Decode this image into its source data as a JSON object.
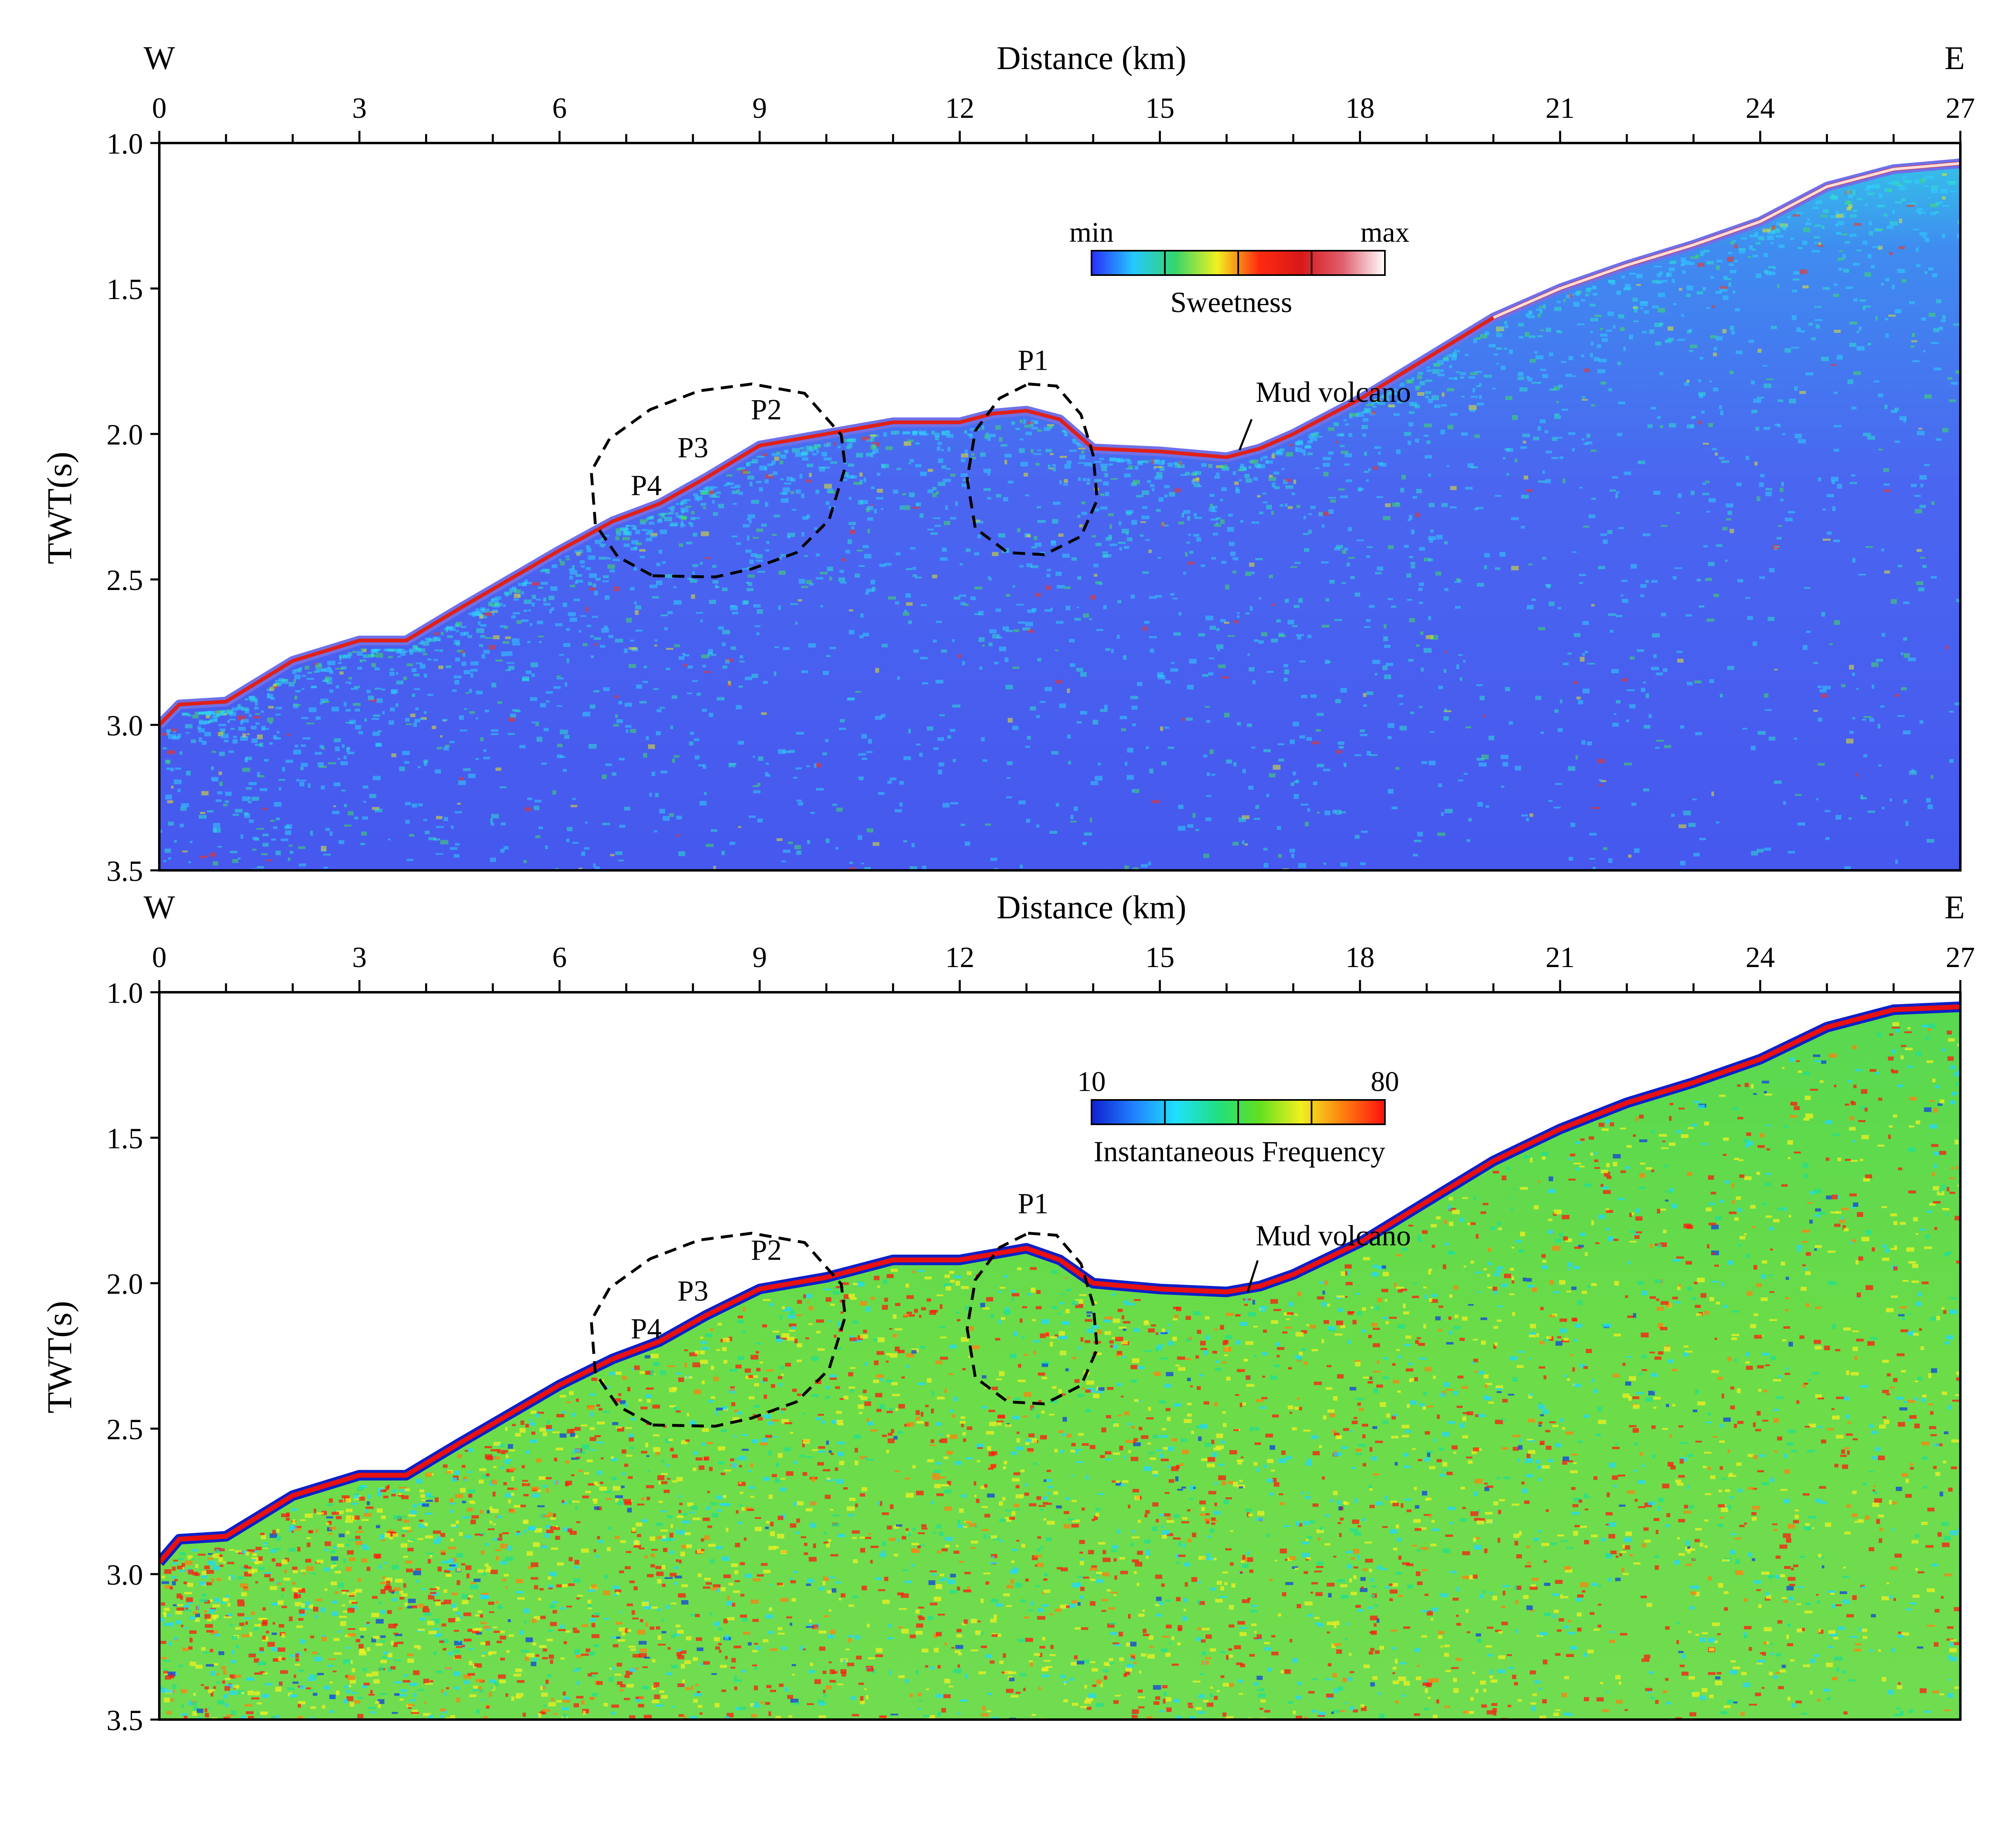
{
  "chart_data": [
    {
      "type": "heatmap",
      "attribute": "Sweetness",
      "xlabel": "Distance (km)",
      "ylabel": "TWT(s)",
      "direction_left": "W",
      "direction_right": "E",
      "xlim": [
        0,
        27
      ],
      "ylim": [
        1.0,
        3.5
      ],
      "xticks": [
        "0",
        "3",
        "6",
        "9",
        "12",
        "15",
        "18",
        "21",
        "24",
        "27"
      ],
      "yticks": [
        "1.0",
        "1.5",
        "2.0",
        "2.5",
        "3.0",
        "3.5"
      ],
      "colorbar": {
        "title": "Sweetness",
        "min_label": "min",
        "max_label": "max",
        "colors": [
          "#2a2cff",
          "#25c8ff",
          "#35d66a",
          "#f2f020",
          "#ff2a10",
          "#d81818",
          "#e06070",
          "#ffffff"
        ]
      },
      "seafloor_profile": {
        "x_km": [
          0,
          0.3,
          1,
          2,
          3,
          3.7,
          4.5,
          6,
          6.8,
          7.5,
          8.2,
          9,
          10,
          11,
          12,
          12.5,
          13,
          13.5,
          14,
          15,
          16,
          16.5,
          17,
          18,
          19,
          20,
          21,
          22,
          23,
          24,
          25,
          26,
          27
        ],
        "twt_s": [
          3.0,
          2.93,
          2.92,
          2.78,
          2.71,
          2.71,
          2.6,
          2.4,
          2.3,
          2.24,
          2.15,
          2.04,
          2.0,
          1.96,
          1.96,
          1.93,
          1.92,
          1.95,
          2.05,
          2.06,
          2.08,
          2.05,
          2.0,
          1.88,
          1.74,
          1.6,
          1.5,
          1.42,
          1.35,
          1.27,
          1.15,
          1.09,
          1.07
        ]
      },
      "annotations": [
        {
          "text": "P1",
          "x_km": 13.1,
          "twt_s": 1.78
        },
        {
          "text": "P2",
          "x_km": 9.1,
          "twt_s": 1.95
        },
        {
          "text": "P3",
          "x_km": 8.0,
          "twt_s": 2.08
        },
        {
          "text": "P4",
          "x_km": 7.3,
          "twt_s": 2.21
        },
        {
          "text": "Mud volcano",
          "x_km": 17.6,
          "twt_s": 1.89
        }
      ]
    },
    {
      "type": "heatmap",
      "attribute": "Instantaneous Frequency",
      "xlabel": "Distance (km)",
      "ylabel": "TWT(s)",
      "direction_left": "W",
      "direction_right": "E",
      "xlim": [
        0,
        27
      ],
      "ylim": [
        1.0,
        3.5
      ],
      "xticks": [
        "0",
        "3",
        "6",
        "9",
        "12",
        "15",
        "18",
        "21",
        "24",
        "27"
      ],
      "yticks": [
        "1.0",
        "1.5",
        "2.0",
        "2.5",
        "3.0",
        "3.5"
      ],
      "colorbar": {
        "title": "Instantaneous Frequency",
        "min_label": "10",
        "max_label": "80",
        "colors": [
          "#1020d0",
          "#2080ff",
          "#20e0ff",
          "#20e080",
          "#60e020",
          "#f0f020",
          "#ff8010",
          "#ff1010"
        ]
      },
      "seafloor_profile": {
        "x_km": [
          0,
          0.3,
          1,
          2,
          3,
          3.7,
          4.5,
          6,
          6.8,
          7.5,
          8.2,
          9,
          10,
          11,
          12,
          12.5,
          13,
          13.5,
          14,
          15,
          16,
          16.5,
          17,
          18,
          19,
          20,
          21,
          22,
          23,
          24,
          25,
          26,
          27
        ],
        "twt_s": [
          2.96,
          2.88,
          2.87,
          2.73,
          2.66,
          2.66,
          2.55,
          2.35,
          2.26,
          2.2,
          2.11,
          2.02,
          1.98,
          1.92,
          1.92,
          1.9,
          1.88,
          1.92,
          2.0,
          2.02,
          2.03,
          2.01,
          1.97,
          1.86,
          1.72,
          1.58,
          1.47,
          1.38,
          1.31,
          1.23,
          1.12,
          1.06,
          1.05
        ]
      },
      "annotations": [
        {
          "text": "P1",
          "x_km": 13.1,
          "twt_s": 1.76
        },
        {
          "text": "P2",
          "x_km": 9.1,
          "twt_s": 1.92
        },
        {
          "text": "P3",
          "x_km": 8.0,
          "twt_s": 2.06
        },
        {
          "text": "P4",
          "x_km": 7.3,
          "twt_s": 2.19
        },
        {
          "text": "Mud volcano",
          "x_km": 17.6,
          "twt_s": 1.87
        }
      ]
    }
  ]
}
